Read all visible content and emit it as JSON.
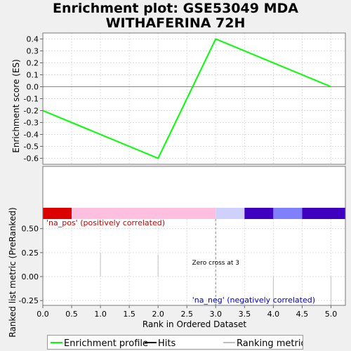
{
  "chart_data": {
    "type": "line",
    "title_line1": "Enrichment plot: GSE53049 MDA",
    "title_line2": "WITHAFERINA 72H",
    "xlabel": "Rank in Ordered Dataset",
    "ylabel_top": "Enrichment score (ES)",
    "ylabel_bottom": "Ranked list metric (PreRanked)",
    "x_range": [
      0,
      5.25
    ],
    "x_ticks": [
      "0.0",
      "0.5",
      "1.0",
      "1.5",
      "2.0",
      "2.5",
      "3.0",
      "3.5",
      "4.0",
      "4.5",
      "5.0"
    ],
    "es_ylim": [
      -0.65,
      0.45
    ],
    "es_ticks": [
      "0.4",
      "0.3",
      "0.2",
      "0.1",
      "0.0",
      "-0.1",
      "-0.2",
      "-0.3",
      "-0.4",
      "-0.5",
      "-0.6"
    ],
    "metric_ylim": [
      -0.3,
      0.6
    ],
    "metric_ticks": [
      "0.50",
      "0.25",
      "0.00",
      "-0.25"
    ],
    "series": [
      {
        "name": "Enrichment profile",
        "color": "#00ff00",
        "x": [
          0,
          2,
          3,
          5
        ],
        "y": [
          -0.2,
          -0.6,
          0.4,
          0.0
        ]
      }
    ],
    "hits": [
      3
    ],
    "metric_ticks_data": [
      {
        "x": 1,
        "y": 0.25
      },
      {
        "x": 2,
        "y": 0.23
      },
      {
        "x": 4,
        "y": -0.3
      },
      {
        "x": 5,
        "y": -0.3
      }
    ],
    "color_bar": [
      {
        "from": 0.0,
        "to": 0.5,
        "color": "#dd0000"
      },
      {
        "from": 0.5,
        "to": 3.0,
        "color": "#ffc0e0"
      },
      {
        "from": 3.0,
        "to": 3.5,
        "color": "#d0d0ff"
      },
      {
        "from": 3.5,
        "to": 4.0,
        "color": "#4000c0"
      },
      {
        "from": 4.0,
        "to": 4.5,
        "color": "#8080ff"
      },
      {
        "from": 4.5,
        "to": 5.25,
        "color": "#4000c0"
      }
    ],
    "annotations": {
      "pos_label": "'na_pos' (positively correlated)",
      "neg_label": "'na_neg' (negatively correlated)",
      "zero_cross": "Zero cross at 3",
      "zero_cross_x": 3
    },
    "legend": [
      {
        "label": "Enrichment profile",
        "color": "#00ff00"
      },
      {
        "label": "Hits",
        "color": "#000000"
      },
      {
        "label": "Ranking metric scores",
        "color": "#c0c0c0"
      }
    ],
    "grid": true
  }
}
